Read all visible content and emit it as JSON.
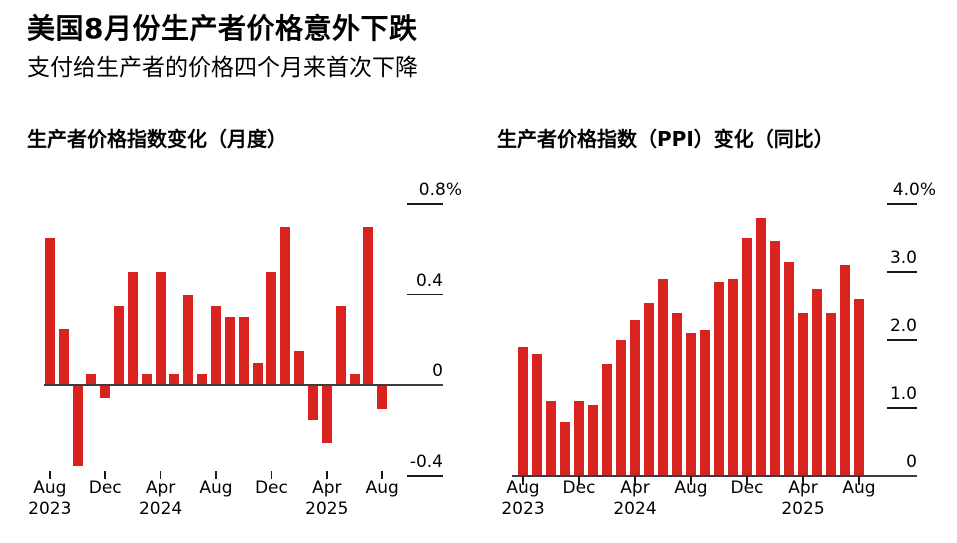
{
  "page": {
    "title": "美国8月份生产者价格意外下跌",
    "subtitle": "支付给生产者的价格四个月来首次下降",
    "background_color": "#ffffff",
    "text_color": "#000000",
    "accent_color": "#d8231f"
  },
  "chart_data": [
    {
      "id": "ppi-monthly",
      "type": "bar",
      "title": "生产者价格指数变化（月度）",
      "bar_color": "#d8231f",
      "grid": "right-side tick dashes only",
      "legend_position": "none",
      "yaxis_side": "right",
      "ylim": [
        -0.4,
        0.8
      ],
      "yticks": [
        {
          "label": "0.8%",
          "value": 0.8
        },
        {
          "label": "0.4",
          "value": 0.4
        },
        {
          "label": "0",
          "value": 0
        },
        {
          "label": "-0.4",
          "value": -0.4
        }
      ],
      "xticks": [
        {
          "month": "Aug",
          "year": "2023",
          "index": 0
        },
        {
          "month": "Dec",
          "year": "",
          "index": 4
        },
        {
          "month": "Apr",
          "year": "2024",
          "index": 8
        },
        {
          "month": "Aug",
          "year": "",
          "index": 12
        },
        {
          "month": "Dec",
          "year": "",
          "index": 16
        },
        {
          "month": "Apr",
          "year": "2025",
          "index": 20
        },
        {
          "month": "Aug",
          "year": "",
          "index": 24
        }
      ],
      "categories": [
        "Aug 2023",
        "Sep 2023",
        "Oct 2023",
        "Nov 2023",
        "Dec 2023",
        "Jan 2024",
        "Feb 2024",
        "Mar 2024",
        "Apr 2024",
        "May 2024",
        "Jun 2024",
        "Jul 2024",
        "Aug 2024",
        "Sep 2024",
        "Oct 2024",
        "Nov 2024",
        "Dec 2024",
        "Jan 2025",
        "Feb 2025",
        "Mar 2025",
        "Apr 2025",
        "May 2025",
        "Jun 2025",
        "Jul 2025",
        "Aug 2025"
      ],
      "values": [
        0.65,
        0.25,
        -0.35,
        0.05,
        -0.05,
        0.35,
        0.5,
        0.05,
        0.5,
        0.05,
        0.4,
        0.05,
        0.35,
        0.3,
        0.3,
        0.1,
        0.5,
        0.7,
        0.15,
        -0.15,
        -0.25,
        0.35,
        0.05,
        0.7,
        -0.1
      ]
    },
    {
      "id": "ppi-yoy",
      "type": "bar",
      "title": "生产者价格指数（PPI）变化（同比）",
      "bar_color": "#d8231f",
      "grid": "right-side tick dashes only",
      "legend_position": "none",
      "yaxis_side": "right",
      "ylim": [
        0,
        4.0
      ],
      "yticks": [
        {
          "label": "4.0%",
          "value": 4.0
        },
        {
          "label": "3.0",
          "value": 3.0
        },
        {
          "label": "2.0",
          "value": 2.0
        },
        {
          "label": "1.0",
          "value": 1.0
        },
        {
          "label": "0",
          "value": 0
        }
      ],
      "xticks": [
        {
          "month": "Aug",
          "year": "2023",
          "index": 0
        },
        {
          "month": "Dec",
          "year": "",
          "index": 4
        },
        {
          "month": "Apr",
          "year": "2024",
          "index": 8
        },
        {
          "month": "Aug",
          "year": "",
          "index": 12
        },
        {
          "month": "Dec",
          "year": "",
          "index": 16
        },
        {
          "month": "Apr",
          "year": "2025",
          "index": 20
        },
        {
          "month": "Aug",
          "year": "",
          "index": 24
        }
      ],
      "categories": [
        "Aug 2023",
        "Sep 2023",
        "Oct 2023",
        "Nov 2023",
        "Dec 2023",
        "Jan 2024",
        "Feb 2024",
        "Mar 2024",
        "Apr 2024",
        "May 2024",
        "Jun 2024",
        "Jul 2024",
        "Aug 2024",
        "Sep 2024",
        "Oct 2024",
        "Nov 2024",
        "Dec 2024",
        "Jan 2025",
        "Feb 2025",
        "Mar 2025",
        "Apr 2025",
        "May 2025",
        "Jun 2025",
        "Jul 2025",
        "Aug 2025"
      ],
      "values": [
        1.9,
        1.8,
        1.1,
        0.8,
        1.1,
        1.05,
        1.65,
        2.0,
        2.3,
        2.55,
        2.9,
        2.4,
        2.1,
        2.15,
        2.85,
        2.9,
        3.5,
        3.8,
        3.45,
        3.15,
        2.4,
        2.75,
        2.4,
        3.1,
        2.6
      ]
    }
  ]
}
